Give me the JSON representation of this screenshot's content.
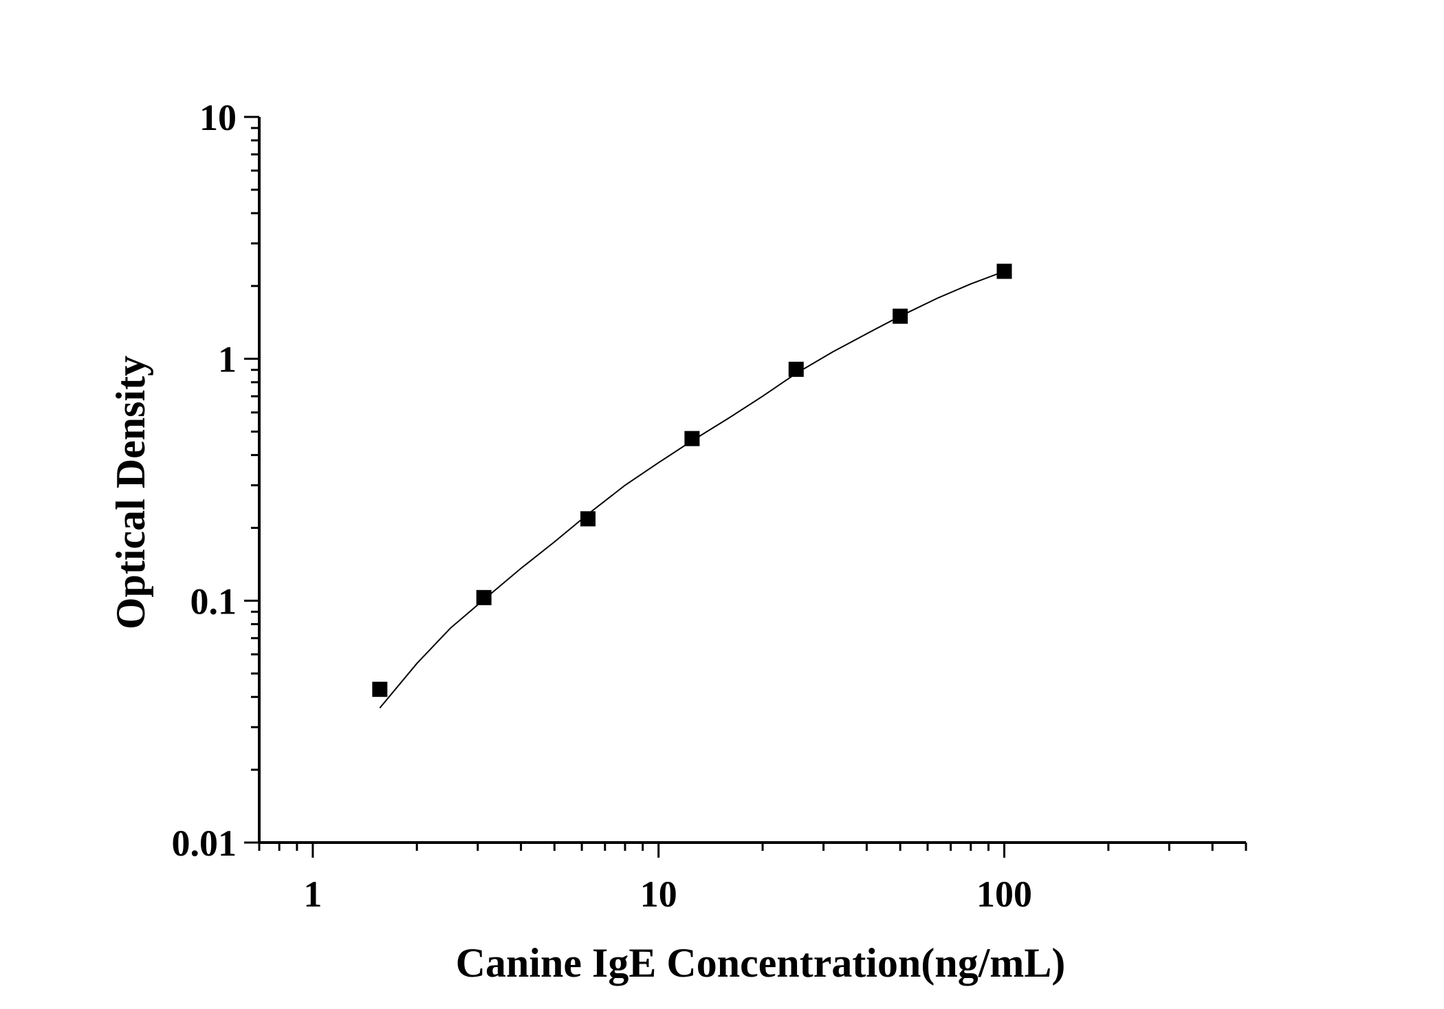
{
  "chart_data": {
    "type": "scatter",
    "title": "",
    "xlabel": "Canine IgE Concentration(ng/mL)",
    "ylabel": "Optical Density",
    "xscale": "log",
    "yscale": "log",
    "xlim": [
      0.7,
      500
    ],
    "ylim": [
      0.01,
      10
    ],
    "xticks": [
      1,
      10,
      100
    ],
    "xtick_labels": [
      "1",
      "10",
      "100"
    ],
    "yticks": [
      0.01,
      0.1,
      1,
      10
    ],
    "ytick_labels": [
      "0.01",
      "0.1",
      "1",
      "10"
    ],
    "grid": false,
    "legend": "none",
    "series": [
      {
        "x": [
          1.5625,
          3.125,
          6.25,
          12.5,
          25,
          50,
          100
        ],
        "y": [
          0.043,
          0.103,
          0.218,
          0.468,
          0.905,
          1.5,
          2.3
        ],
        "marker": "square",
        "line": "fitted-curve"
      }
    ],
    "fit_curve": {
      "x": [
        1.5625,
        2.0,
        2.5,
        3.125,
        4.0,
        5.0,
        6.25,
        8.0,
        10.0,
        12.5,
        16.0,
        20.0,
        25.0,
        32.0,
        40.0,
        50.0,
        64.0,
        80.0,
        100.0
      ],
      "y": [
        0.036,
        0.055,
        0.077,
        0.101,
        0.136,
        0.175,
        0.228,
        0.3,
        0.372,
        0.458,
        0.57,
        0.7,
        0.87,
        1.07,
        1.27,
        1.5,
        1.78,
        2.04,
        2.3
      ]
    },
    "colors": {
      "axis": "#000000",
      "marker": "#000000",
      "line": "#000000"
    }
  }
}
